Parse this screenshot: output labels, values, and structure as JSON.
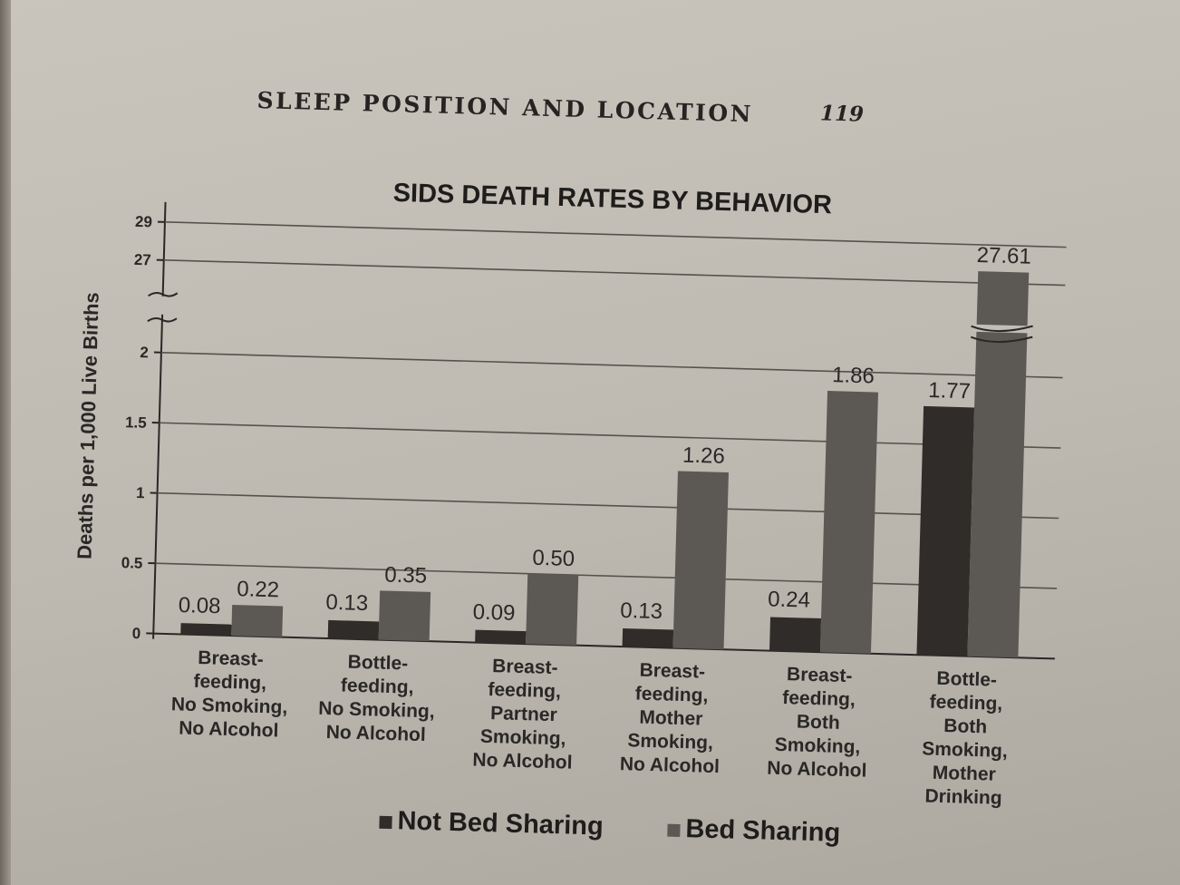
{
  "page": {
    "running_head": "SLEEP POSITION AND LOCATION",
    "page_number": "119"
  },
  "chart_data": {
    "type": "bar",
    "title": "SIDS DEATH RATES BY BEHAVIOR",
    "ylabel": "Deaths per 1,000 Live Births",
    "xlabel": "",
    "categories": [
      [
        "Breast-",
        "feeding,",
        "No Smoking,",
        "No Alcohol"
      ],
      [
        "Bottle-",
        "feeding,",
        "No Smoking,",
        "No Alcohol"
      ],
      [
        "Breast-",
        "feeding,",
        "Partner",
        "Smoking,",
        "No Alcohol"
      ],
      [
        "Breast-",
        "feeding,",
        "Mother",
        "Smoking,",
        "No Alcohol"
      ],
      [
        "Breast-",
        "feeding,",
        "Both",
        "Smoking,",
        "No Alcohol"
      ],
      [
        "Bottle-",
        "feeding,",
        "Both",
        "Smoking,",
        "Mother",
        "Drinking"
      ]
    ],
    "series": [
      {
        "name": "Not Bed Sharing",
        "values": [
          0.08,
          0.13,
          0.09,
          0.13,
          0.24,
          1.77
        ],
        "labels": [
          "0.08",
          "0.13",
          "0.09",
          "0.13",
          "0.24",
          "1.77"
        ],
        "color": "#2f2c29"
      },
      {
        "name": "Bed Sharing",
        "values": [
          0.22,
          0.35,
          0.5,
          1.26,
          1.86,
          27.61
        ],
        "labels": [
          "0.22",
          "0.35",
          "0.50",
          "1.26",
          "1.86",
          "27.61"
        ],
        "color": "#5c5955"
      }
    ],
    "yticks": [
      "0",
      "0.5",
      "1",
      "1.5",
      "2",
      "27",
      "29"
    ],
    "axis_break": {
      "from": 2,
      "to": 27
    },
    "ylim": [
      0,
      29.5
    ],
    "grid": true,
    "legend_position": "bottom"
  }
}
